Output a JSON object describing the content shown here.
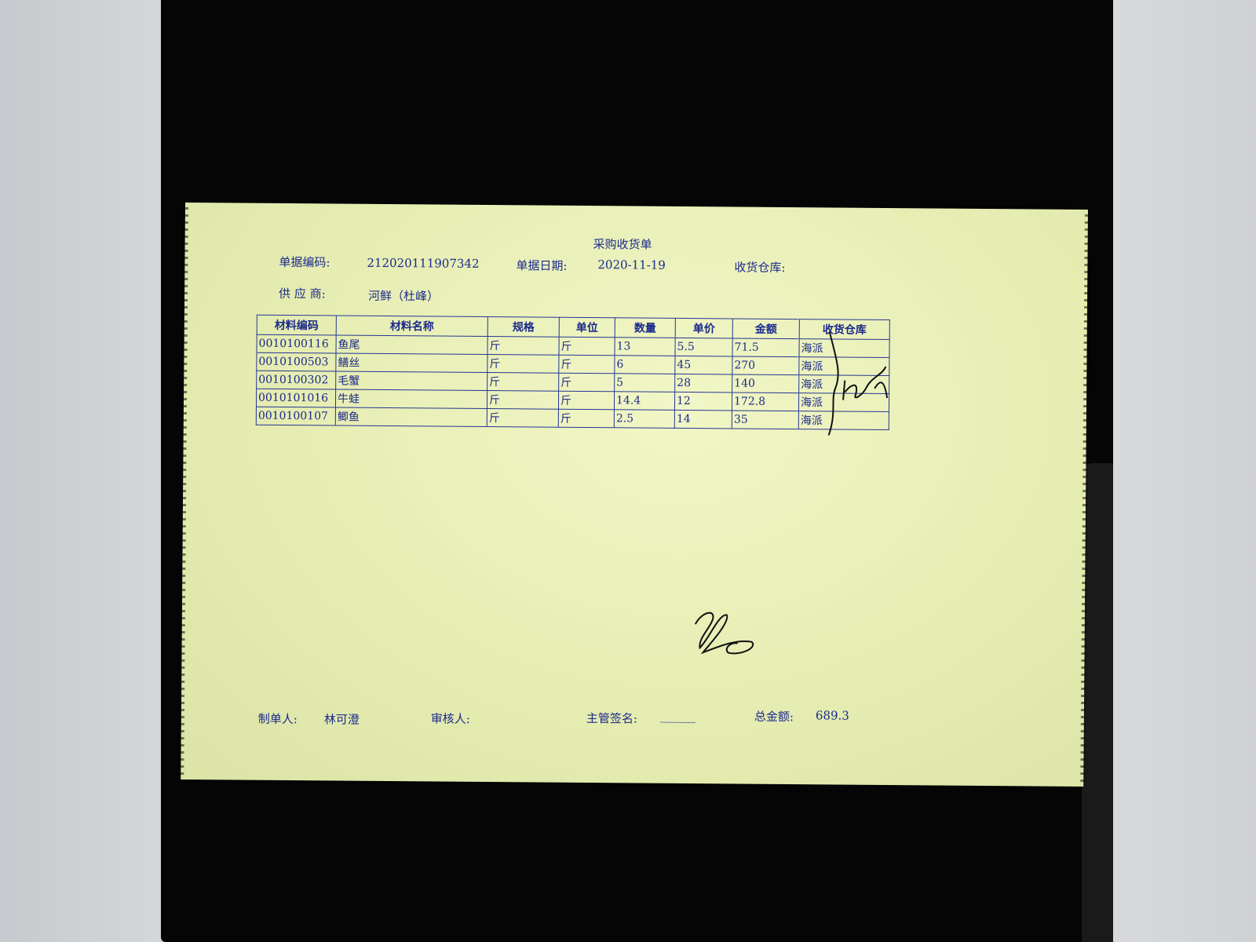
{
  "document": {
    "title": "采购收货单",
    "doc_no_label": "单据编码:",
    "doc_no": "212020111907342",
    "date_label": "单据日期:",
    "date": "2020-11-19",
    "warehouse_label": "收货仓库:",
    "supplier_label": "供 应 商:",
    "supplier": "河鲜（杜峰）"
  },
  "table": {
    "headers": [
      "材料编码",
      "材料名称",
      "规格",
      "单位",
      "数量",
      "单价",
      "金额",
      "收货仓库"
    ],
    "rows": [
      [
        "0010100116",
        "鱼尾",
        "斤",
        "斤",
        "13",
        "5.5",
        "71.5",
        "海派"
      ],
      [
        "0010100503",
        "鳝丝",
        "斤",
        "斤",
        "6",
        "45",
        "270",
        "海派"
      ],
      [
        "0010100302",
        "毛蟹",
        "斤",
        "斤",
        "5",
        "28",
        "140",
        "海派"
      ],
      [
        "0010101016",
        "牛蛙",
        "斤",
        "斤",
        "14.4",
        "12",
        "172.8",
        "海派"
      ],
      [
        "0010100107",
        "鲫鱼",
        "斤",
        "斤",
        "2.5",
        "14",
        "35",
        "海派"
      ]
    ]
  },
  "footer": {
    "maker_label": "制单人:",
    "maker": "林可澄",
    "reviewer_label": "审核人:",
    "supervisor_label": "主管签名:",
    "supervisor_blank": "______",
    "total_label": "总金额:",
    "total": "689.3"
  },
  "colors": {
    "paper": "#e6edb2",
    "ink": "#1b2a8c",
    "pen": "#111111"
  }
}
